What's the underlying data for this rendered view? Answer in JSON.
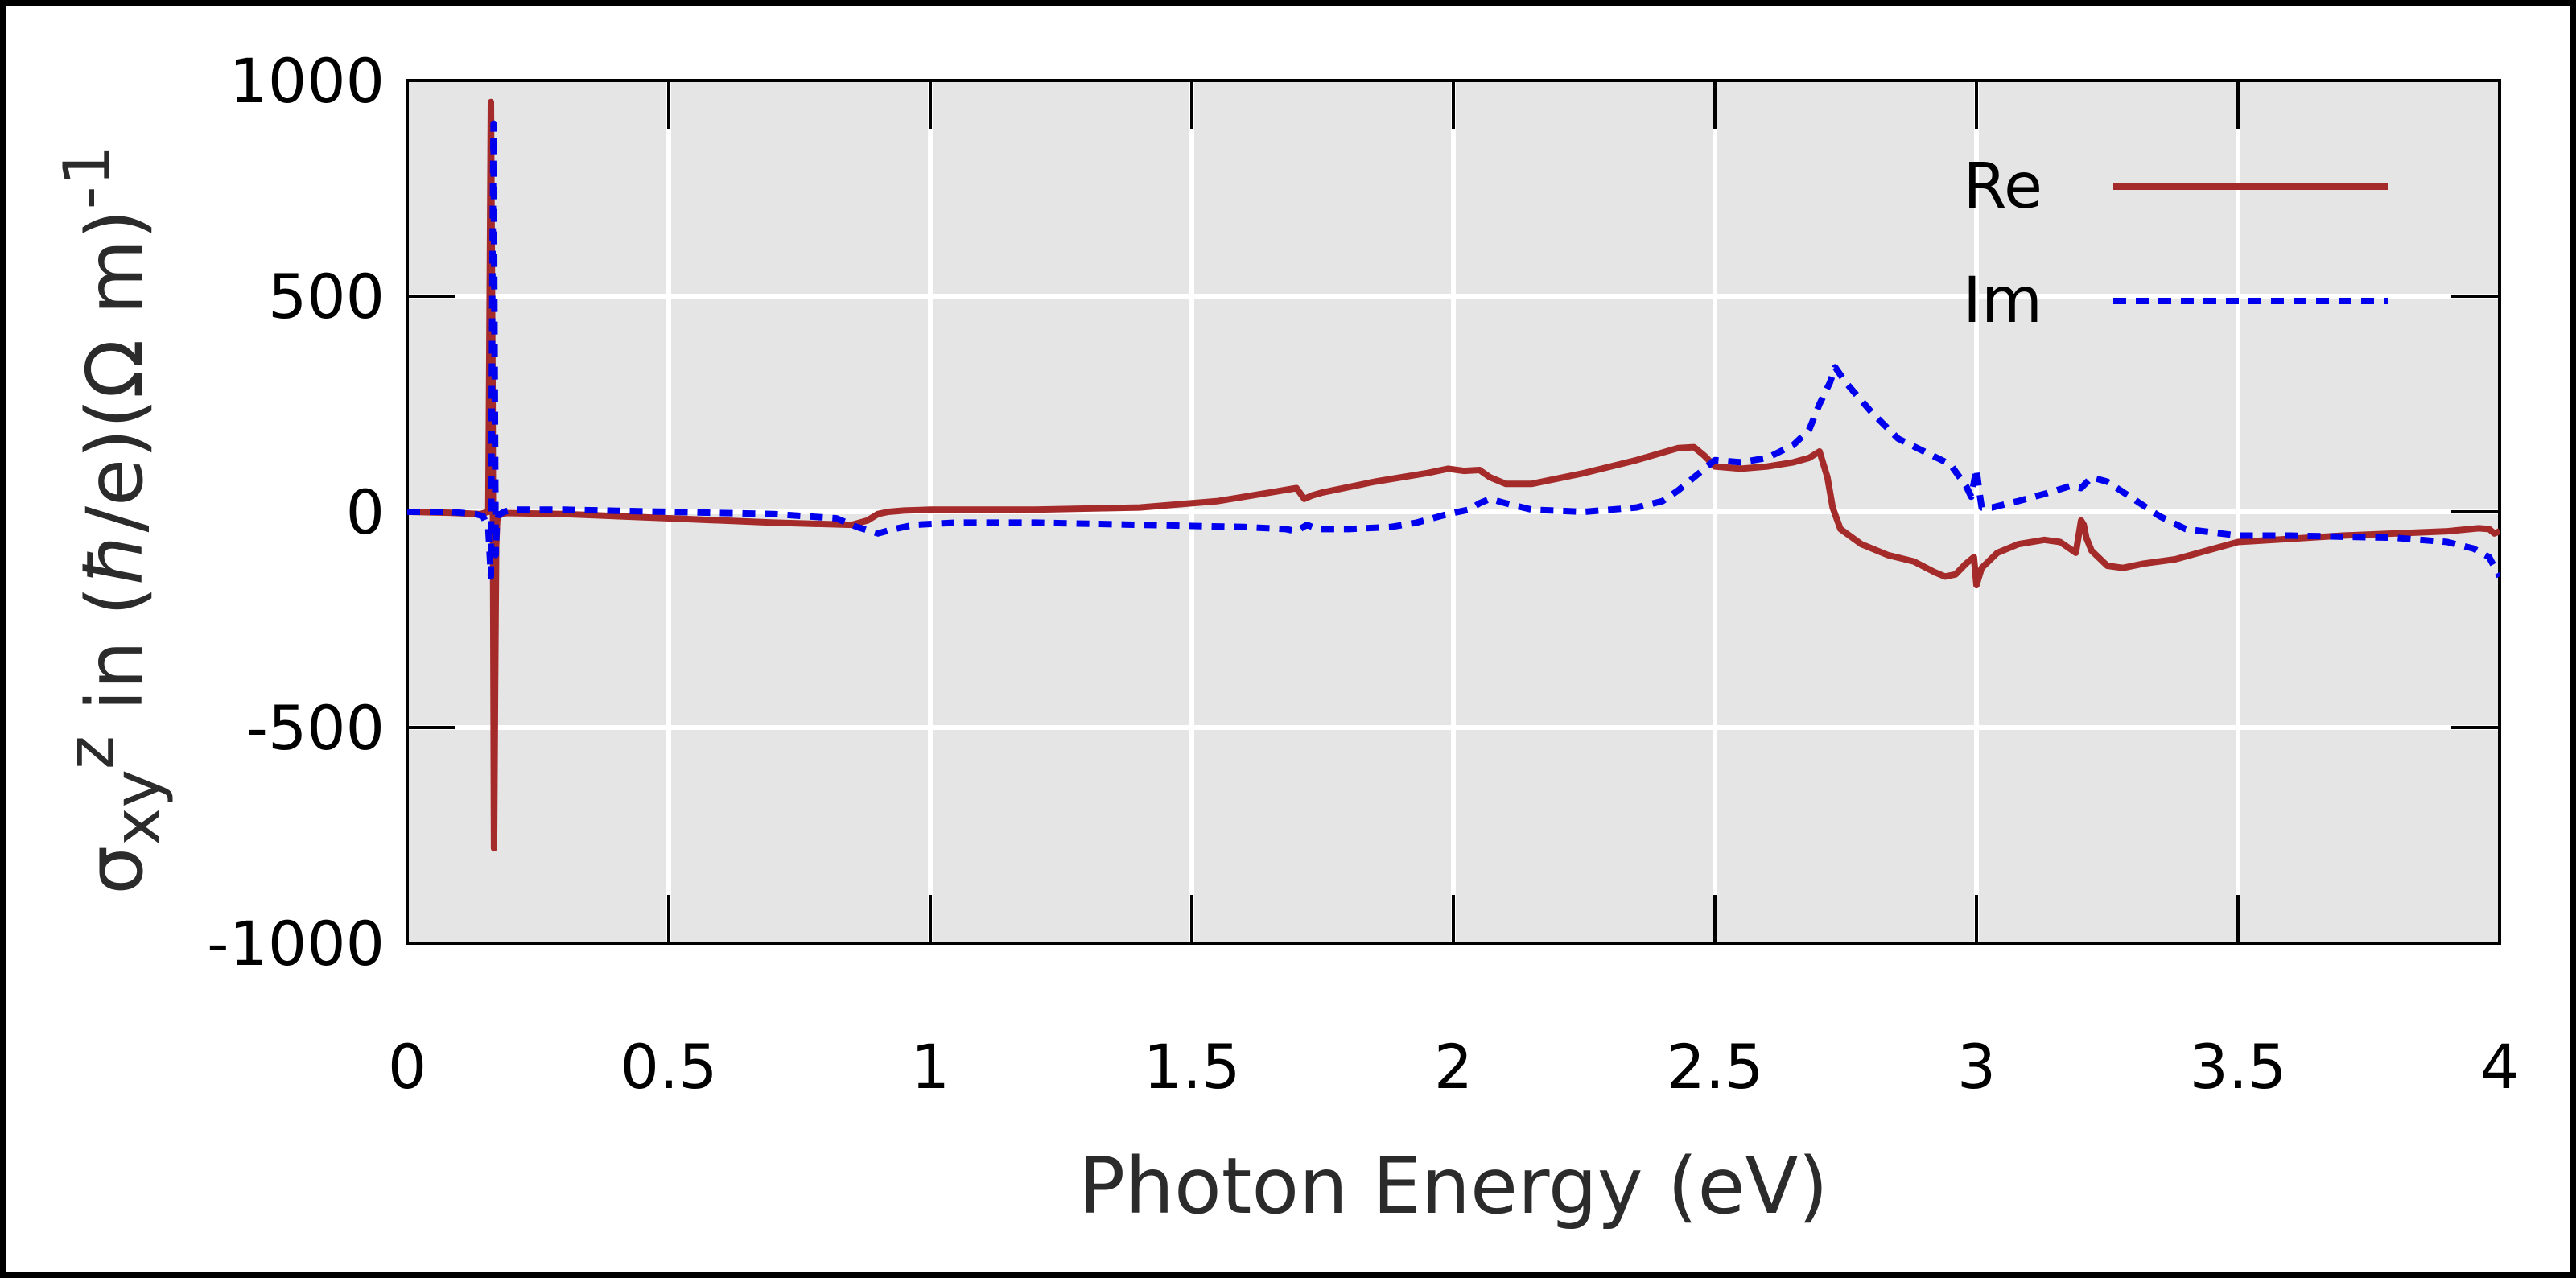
{
  "chart_data": {
    "type": "line",
    "xlabel": "Photon Energy (eV)",
    "ylabel": {
      "main": "σ",
      "sub": "xy",
      "sup": "z",
      "mid": " in (",
      "hbar": "ħ",
      "units": "/e)(Ω m)",
      "exp": "-1"
    },
    "xlim": [
      0,
      4
    ],
    "ylim": [
      -1000,
      1000
    ],
    "xticks": [
      "0",
      "0.5",
      "1",
      "1.5",
      "2",
      "2.5",
      "3",
      "3.5",
      "4"
    ],
    "yticks": [
      "-1000",
      "-500",
      "0",
      "500",
      "1000"
    ],
    "grid": true,
    "legend_position": "top-right",
    "series": [
      {
        "name": "Re",
        "color": "#a52a2a",
        "dash": "solid",
        "x": [
          0.0,
          0.08,
          0.14,
          0.155,
          0.16,
          0.163,
          0.166,
          0.168,
          0.17,
          0.172,
          0.175,
          0.18,
          0.19,
          0.2,
          0.3,
          0.5,
          0.7,
          0.85,
          0.88,
          0.9,
          0.92,
          0.95,
          1.0,
          1.2,
          1.4,
          1.55,
          1.65,
          1.7,
          1.715,
          1.73,
          1.75,
          1.85,
          1.95,
          1.99,
          2.02,
          2.05,
          2.07,
          2.1,
          2.15,
          2.25,
          2.35,
          2.43,
          2.46,
          2.48,
          2.5,
          2.55,
          2.6,
          2.65,
          2.68,
          2.7,
          2.715,
          2.725,
          2.74,
          2.78,
          2.83,
          2.88,
          2.92,
          2.94,
          2.96,
          2.98,
          2.995,
          3.0,
          3.01,
          3.04,
          3.08,
          3.13,
          3.16,
          3.19,
          3.2,
          3.205,
          3.21,
          3.22,
          3.25,
          3.28,
          3.32,
          3.38,
          3.5,
          3.7,
          3.9,
          3.96,
          3.98,
          3.99,
          4.0
        ],
        "y": [
          0,
          -2,
          -5,
          0,
          950,
          300,
          -780,
          -400,
          -80,
          -20,
          -10,
          -5,
          -3,
          -3,
          -5,
          -15,
          -25,
          -30,
          -20,
          -5,
          0,
          3,
          5,
          5,
          10,
          25,
          45,
          55,
          30,
          38,
          45,
          70,
          90,
          100,
          95,
          97,
          80,
          65,
          65,
          90,
          120,
          148,
          150,
          130,
          105,
          100,
          105,
          115,
          125,
          140,
          80,
          10,
          -40,
          -75,
          -100,
          -115,
          -140,
          -150,
          -145,
          -120,
          -105,
          -170,
          -130,
          -95,
          -75,
          -65,
          -70,
          -95,
          -20,
          -30,
          -60,
          -90,
          -125,
          -130,
          -120,
          -110,
          -70,
          -55,
          -45,
          -38,
          -40,
          -50,
          -45
        ]
      },
      {
        "name": "Im",
        "color": "#0000ee",
        "dash": "dotted",
        "x": [
          0.0,
          0.08,
          0.13,
          0.145,
          0.155,
          0.16,
          0.163,
          0.165,
          0.167,
          0.169,
          0.171,
          0.174,
          0.178,
          0.185,
          0.2,
          0.3,
          0.5,
          0.7,
          0.82,
          0.86,
          0.9,
          0.93,
          0.97,
          1.05,
          1.2,
          1.4,
          1.6,
          1.68,
          1.7,
          1.72,
          1.74,
          1.8,
          1.88,
          1.93,
          1.96,
          1.99,
          2.03,
          2.05,
          2.07,
          2.1,
          2.15,
          2.25,
          2.35,
          2.4,
          2.43,
          2.45,
          2.47,
          2.49,
          2.5,
          2.55,
          2.6,
          2.65,
          2.68,
          2.7,
          2.72,
          2.73,
          2.75,
          2.8,
          2.85,
          2.9,
          2.95,
          2.98,
          2.99,
          3.0,
          3.005,
          3.01,
          3.03,
          3.08,
          3.14,
          3.18,
          3.2,
          3.22,
          3.25,
          3.3,
          3.35,
          3.4,
          3.5,
          3.6,
          3.8,
          3.9,
          3.95,
          3.98,
          4.0
        ],
        "y": [
          0,
          0,
          -5,
          -10,
          -40,
          -150,
          600,
          900,
          400,
          -100,
          -40,
          -10,
          -5,
          0,
          5,
          5,
          0,
          -5,
          -15,
          -35,
          -50,
          -40,
          -30,
          -25,
          -25,
          -30,
          -35,
          -40,
          -45,
          -30,
          -40,
          -40,
          -35,
          -25,
          -15,
          -5,
          5,
          20,
          30,
          20,
          5,
          0,
          10,
          25,
          50,
          70,
          90,
          110,
          120,
          115,
          125,
          155,
          190,
          250,
          300,
          335,
          300,
          230,
          170,
          140,
          110,
          60,
          35,
          100,
          50,
          10,
          10,
          25,
          45,
          60,
          55,
          80,
          70,
          30,
          -10,
          -40,
          -55,
          -55,
          -60,
          -70,
          -85,
          -105,
          -150
        ]
      }
    ]
  }
}
